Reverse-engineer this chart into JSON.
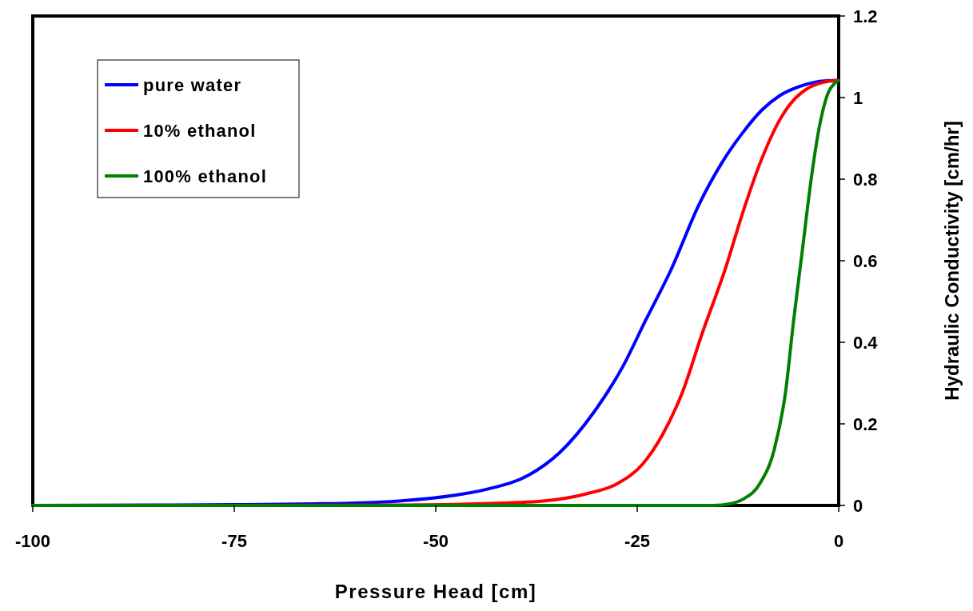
{
  "chart_data": {
    "type": "line",
    "xlabel": "Pressure Head [cm]",
    "ylabel": "Hydraulic Conductivity [cm/hr]",
    "xlim": [
      -100,
      0
    ],
    "xticks": [
      -100,
      -75,
      -50,
      -25,
      0
    ],
    "ylim": [
      0,
      1.2
    ],
    "yticks": [
      0,
      0.2,
      0.4,
      0.6,
      0.8,
      1,
      1.2
    ],
    "grid": false,
    "legend": "top left",
    "marker": "none",
    "line_style": "solid",
    "series": [
      {
        "name": "pure water",
        "color": "#0000ff",
        "x": [
          -100,
          -85,
          -75,
          -65,
          -60,
          -54.5,
          -48,
          -43.8,
          -38.5,
          -34.6,
          -30.4,
          -26.8,
          -24,
          -20.8,
          -17.3,
          -14.5,
          -11.9,
          -9.5,
          -7.3,
          -5,
          -3.1,
          -1.5,
          0
        ],
        "values": [
          0,
          0.001,
          0.002,
          0.004,
          0.006,
          0.011,
          0.024,
          0.039,
          0.074,
          0.13,
          0.228,
          0.34,
          0.452,
          0.578,
          0.739,
          0.84,
          0.914,
          0.97,
          1.005,
          1.026,
          1.037,
          1.041,
          1.042
        ]
      },
      {
        "name": "10% ethanol",
        "color": "#ff0000",
        "x": [
          -100,
          -75,
          -55,
          -45,
          -36.7,
          -31.4,
          -27.5,
          -24.3,
          -21.9,
          -19.4,
          -16.9,
          -14.1,
          -11.9,
          -9.8,
          -7,
          -5.3,
          -3.8,
          -2,
          0
        ],
        "values": [
          0,
          0,
          0.001,
          0.004,
          0.011,
          0.028,
          0.053,
          0.102,
          0.172,
          0.277,
          0.424,
          0.578,
          0.718,
          0.837,
          0.956,
          1,
          1.023,
          1.037,
          1.042
        ]
      },
      {
        "name": "100% ethanol",
        "color": "#008000",
        "x": [
          -100,
          -50,
          -20,
          -15.5,
          -13.5,
          -11.9,
          -9.8,
          -8,
          -6.6,
          -5.6,
          -4.5,
          -3.4,
          -2.4,
          -1.3,
          -0.5,
          0
        ],
        "values": [
          0,
          0,
          0,
          0,
          0.004,
          0.015,
          0.053,
          0.137,
          0.277,
          0.452,
          0.627,
          0.802,
          0.928,
          1.012,
          1.035,
          1.042
        ]
      }
    ]
  }
}
